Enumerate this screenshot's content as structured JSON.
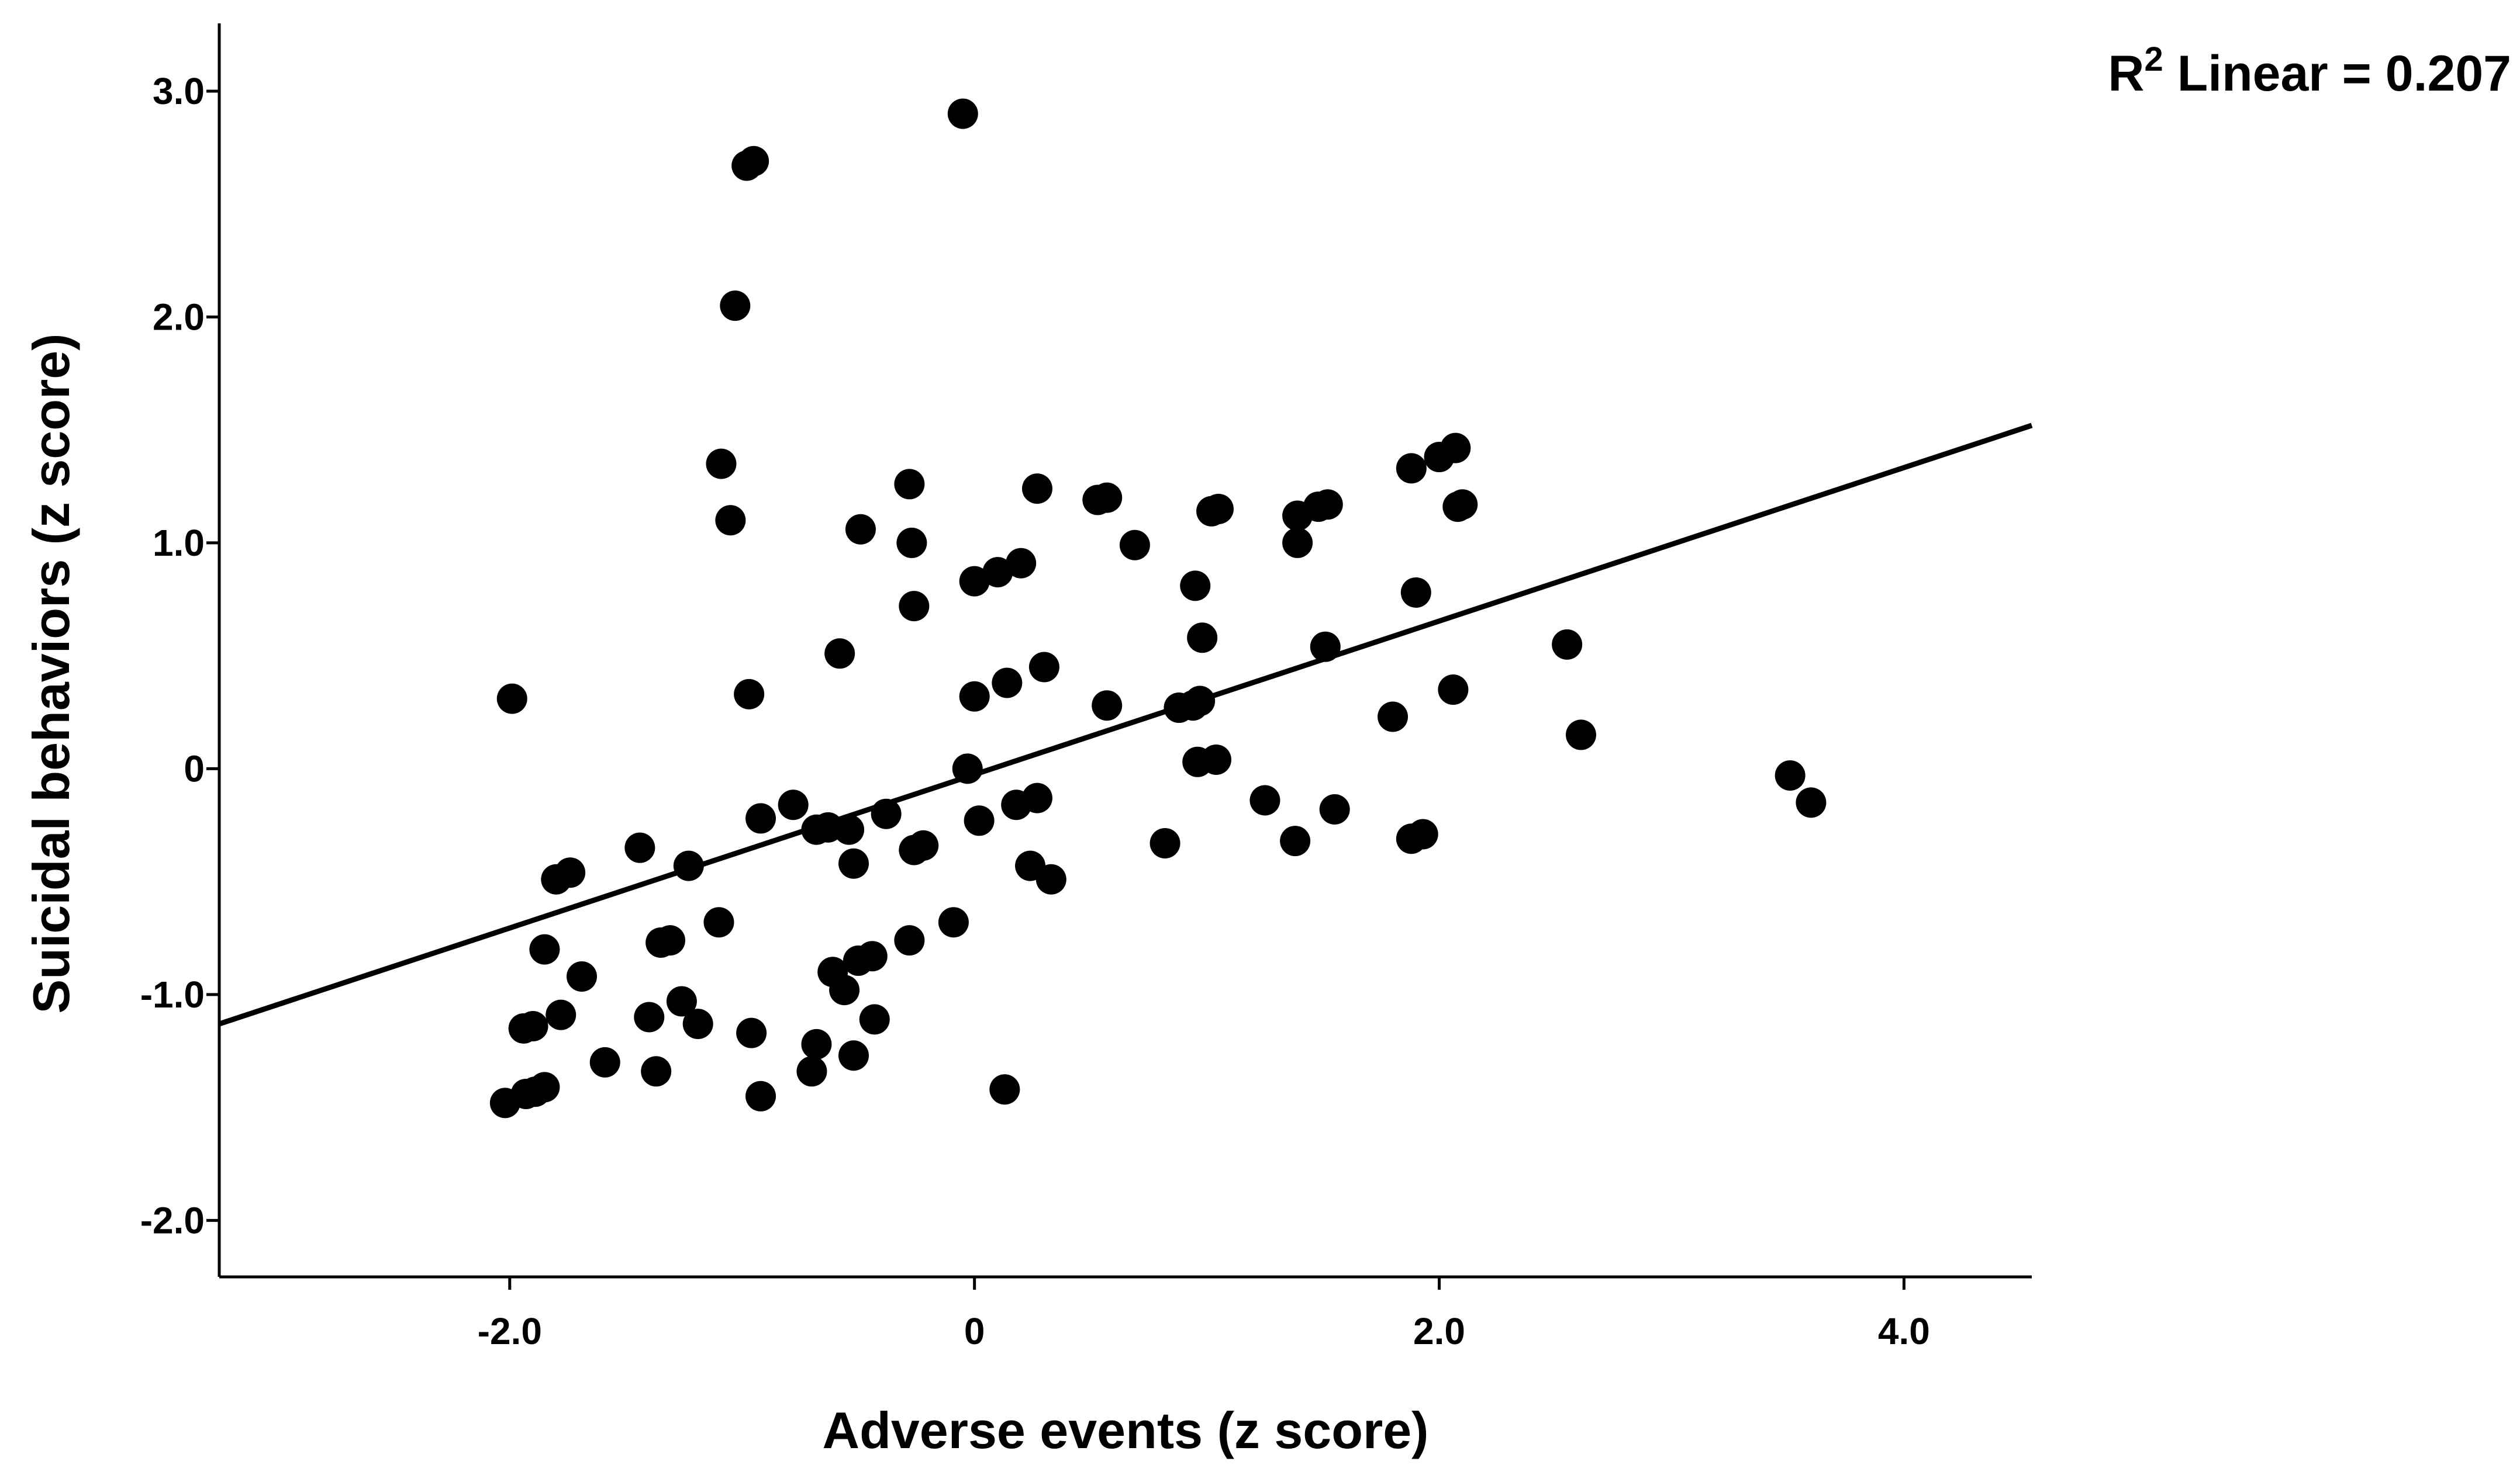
{
  "chart_data": {
    "type": "scatter",
    "xlabel": "Adverse events (z score)",
    "ylabel": "Suicidal behaviors (z score)",
    "xlim": [
      -3.25,
      4.55
    ],
    "ylim": [
      -2.25,
      3.3
    ],
    "x_ticks": [
      {
        "value": -2,
        "label": "-2.0"
      },
      {
        "value": 0,
        "label": "0"
      },
      {
        "value": 2,
        "label": "2.0"
      },
      {
        "value": 4,
        "label": "4.0"
      }
    ],
    "y_ticks": [
      {
        "value": -2,
        "label": "-2.0"
      },
      {
        "value": -1,
        "label": "-1.0"
      },
      {
        "value": 0,
        "label": "0"
      },
      {
        "value": 1,
        "label": "1.0"
      },
      {
        "value": 2,
        "label": "2.0"
      },
      {
        "value": 3,
        "label": "3.0"
      }
    ],
    "grid": false,
    "annotation": {
      "prefix": "R",
      "superscript": "2",
      "text": " Linear = 0.207"
    },
    "fit_line": {
      "x": [
        -3.25,
        4.55
      ],
      "y": [
        -1.13,
        1.52
      ]
    },
    "marker_color": "#000000",
    "points": [
      [
        -2.02,
        -1.48
      ],
      [
        -1.99,
        0.31
      ],
      [
        -1.93,
        -1.44
      ],
      [
        -1.89,
        -1.43
      ],
      [
        -1.85,
        -1.41
      ],
      [
        -1.94,
        -1.15
      ],
      [
        -1.9,
        -1.14
      ],
      [
        -1.85,
        -0.8
      ],
      [
        -1.8,
        -0.49
      ],
      [
        -1.74,
        -0.46
      ],
      [
        -1.78,
        -1.09
      ],
      [
        -1.69,
        -0.92
      ],
      [
        -1.59,
        -1.3
      ],
      [
        -1.44,
        -0.35
      ],
      [
        -1.4,
        -1.1
      ],
      [
        -1.37,
        -1.34
      ],
      [
        -1.35,
        -0.77
      ],
      [
        -1.31,
        -0.76
      ],
      [
        -1.26,
        -1.03
      ],
      [
        -1.23,
        -0.43
      ],
      [
        -1.19,
        -1.13
      ],
      [
        -1.1,
        -0.68
      ],
      [
        -1.09,
        1.35
      ],
      [
        -1.05,
        1.1
      ],
      [
        -1.03,
        2.05
      ],
      [
        -0.98,
        2.67
      ],
      [
        -0.95,
        2.69
      ],
      [
        -0.97,
        0.33
      ],
      [
        -0.96,
        -1.17
      ],
      [
        -0.92,
        -1.45
      ],
      [
        -0.92,
        -0.22
      ],
      [
        -0.78,
        -0.16
      ],
      [
        -0.7,
        -1.34
      ],
      [
        -0.68,
        -1.22
      ],
      [
        -0.68,
        -0.27
      ],
      [
        -0.63,
        -0.26
      ],
      [
        -0.61,
        -0.9
      ],
      [
        -0.58,
        0.51
      ],
      [
        -0.56,
        -0.98
      ],
      [
        -0.54,
        -0.27
      ],
      [
        -0.52,
        -0.42
      ],
      [
        -0.52,
        -1.27
      ],
      [
        -0.5,
        -0.85
      ],
      [
        -0.49,
        1.06
      ],
      [
        -0.44,
        -0.83
      ],
      [
        -0.43,
        -1.11
      ],
      [
        -0.38,
        -0.2
      ],
      [
        -0.28,
        1.26
      ],
      [
        -0.27,
        1.0
      ],
      [
        -0.28,
        -0.76
      ],
      [
        -0.26,
        0.72
      ],
      [
        -0.26,
        -0.36
      ],
      [
        -0.22,
        -0.34
      ],
      [
        -0.09,
        -0.68
      ],
      [
        -0.05,
        2.9
      ],
      [
        -0.03,
        0.0
      ],
      [
        -0.0,
        0.83
      ],
      [
        0.0,
        0.32
      ],
      [
        0.02,
        -0.23
      ],
      [
        0.1,
        0.87
      ],
      [
        0.14,
        0.38
      ],
      [
        0.13,
        -1.42
      ],
      [
        0.18,
        -0.16
      ],
      [
        0.2,
        0.91
      ],
      [
        0.24,
        -0.43
      ],
      [
        0.27,
        -0.13
      ],
      [
        0.27,
        1.24
      ],
      [
        0.3,
        0.45
      ],
      [
        0.33,
        -0.49
      ],
      [
        0.53,
        1.19
      ],
      [
        0.57,
        1.2
      ],
      [
        0.57,
        0.28
      ],
      [
        0.69,
        0.99
      ],
      [
        0.82,
        -0.33
      ],
      [
        0.88,
        0.27
      ],
      [
        0.94,
        0.28
      ],
      [
        0.95,
        0.81
      ],
      [
        0.97,
        0.3
      ],
      [
        0.96,
        0.03
      ],
      [
        0.98,
        0.58
      ],
      [
        1.02,
        1.14
      ],
      [
        1.05,
        1.15
      ],
      [
        1.04,
        0.04
      ],
      [
        1.25,
        -0.14
      ],
      [
        1.38,
        -0.32
      ],
      [
        1.39,
        1.12
      ],
      [
        1.39,
        1.0
      ],
      [
        1.48,
        1.16
      ],
      [
        1.52,
        1.17
      ],
      [
        1.51,
        0.54
      ],
      [
        1.55,
        -0.18
      ],
      [
        1.8,
        0.23
      ],
      [
        1.88,
        1.33
      ],
      [
        1.9,
        0.78
      ],
      [
        1.88,
        -0.31
      ],
      [
        1.93,
        -0.29
      ],
      [
        2.0,
        1.38
      ],
      [
        2.07,
        1.42
      ],
      [
        2.06,
        0.35
      ],
      [
        2.08,
        1.16
      ],
      [
        2.1,
        1.17
      ],
      [
        2.55,
        0.55
      ],
      [
        2.61,
        0.15
      ],
      [
        3.51,
        -0.03
      ],
      [
        3.6,
        -0.15
      ]
    ]
  }
}
